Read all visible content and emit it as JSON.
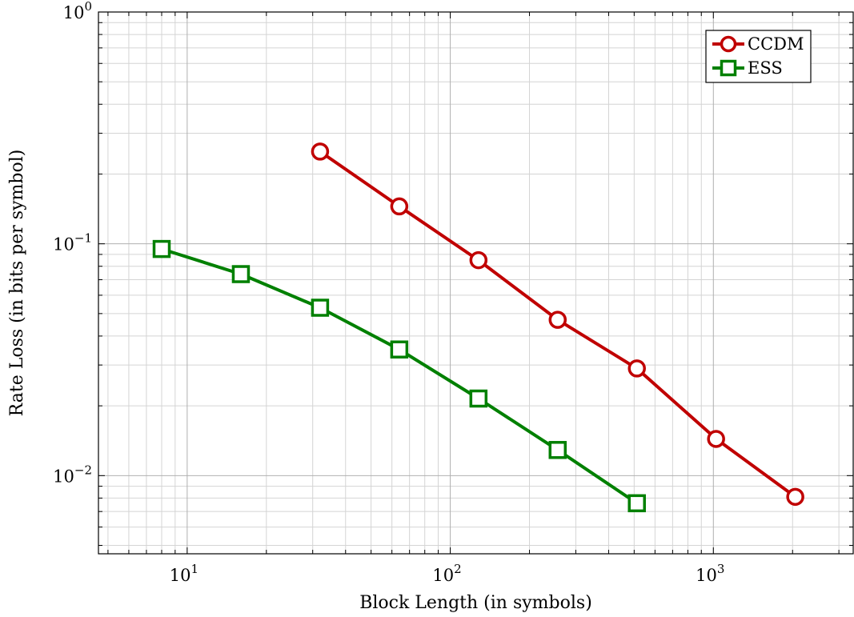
{
  "chart_data": {
    "type": "line",
    "xscale": "log",
    "yscale": "log",
    "xlim": [
      4.6,
      3400
    ],
    "ylim": [
      0.0046,
      1
    ],
    "grid": true,
    "legend_position": "top-right",
    "xlabel": "Block Length (in symbols)",
    "ylabel": "Rate Loss (in bits per symbol)",
    "x_tick_labels": [
      {
        "base": "10",
        "exp": "1",
        "value": 10
      },
      {
        "base": "10",
        "exp": "2",
        "value": 100
      },
      {
        "base": "10",
        "exp": "3",
        "value": 1000
      }
    ],
    "y_tick_labels": [
      {
        "base": "10",
        "exp": "0",
        "value": 1
      },
      {
        "base": "10",
        "exp": "−1",
        "value": 0.1
      },
      {
        "base": "10",
        "exp": "−2",
        "value": 0.01
      }
    ],
    "series": [
      {
        "name": "CCDM",
        "color": "#c00000",
        "marker": "circle",
        "x": [
          32,
          64,
          128,
          256,
          512,
          1024,
          2048
        ],
        "y": [
          0.25,
          0.145,
          0.085,
          0.047,
          0.029,
          0.0144,
          0.0081
        ]
      },
      {
        "name": "ESS",
        "color": "#008000",
        "marker": "square",
        "x": [
          8,
          16,
          32,
          64,
          128,
          256,
          512
        ],
        "y": [
          0.095,
          0.074,
          0.053,
          0.035,
          0.0215,
          0.0129,
          0.0076
        ]
      }
    ]
  }
}
